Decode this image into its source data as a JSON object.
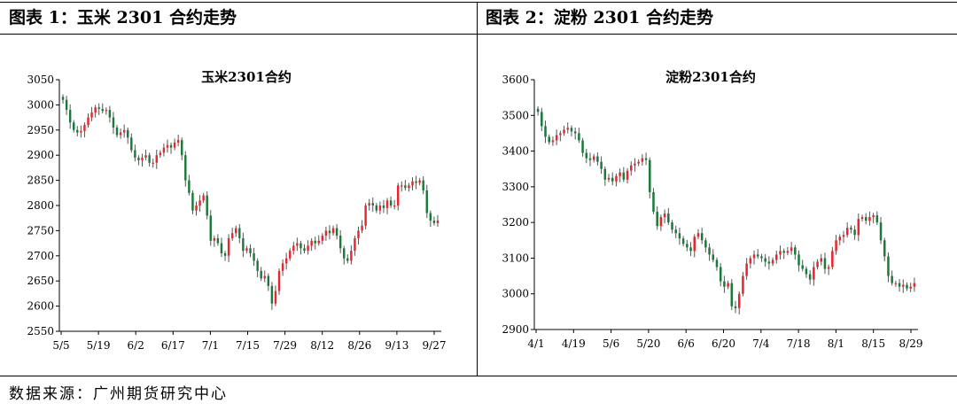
{
  "header": {
    "left_title": "图表 1：玉米 2301 合约走势",
    "right_title": "图表 2：淀粉 2301 合约走势"
  },
  "footer": {
    "source": "数据来源：广州期货研究中心"
  },
  "colors": {
    "up": "#e8262b",
    "down": "#1a7a3a",
    "axis": "#000000",
    "wick": "#555555"
  },
  "chart_data": [
    {
      "type": "candlestick",
      "title": "玉米2301合约",
      "xlabel": "",
      "ylabel": "",
      "ylim": [
        2550,
        3050
      ],
      "yticks": [
        2550,
        2600,
        2650,
        2700,
        2750,
        2800,
        2850,
        2900,
        2950,
        3000,
        3050
      ],
      "xtick_labels": [
        "5/5",
        "5/19",
        "6/2",
        "6/17",
        "7/1",
        "7/15",
        "7/29",
        "8/12",
        "8/26",
        "9/13",
        "9/27"
      ],
      "grid": false,
      "legend": "none",
      "close": [
        3010,
        2990,
        2965,
        2950,
        2945,
        2948,
        2960,
        2975,
        2985,
        2995,
        2992,
        2988,
        2990,
        2975,
        2955,
        2940,
        2945,
        2950,
        2935,
        2910,
        2895,
        2890,
        2895,
        2900,
        2885,
        2885,
        2900,
        2905,
        2915,
        2920,
        2915,
        2925,
        2930,
        2900,
        2850,
        2825,
        2790,
        2800,
        2810,
        2820,
        2780,
        2730,
        2735,
        2725,
        2705,
        2700,
        2735,
        2745,
        2755,
        2735,
        2710,
        2715,
        2705,
        2690,
        2670,
        2655,
        2660,
        2640,
        2605,
        2630,
        2670,
        2685,
        2695,
        2710,
        2720,
        2725,
        2715,
        2710,
        2720,
        2730,
        2725,
        2730,
        2740,
        2750,
        2745,
        2755,
        2740,
        2715,
        2695,
        2690,
        2710,
        2735,
        2750,
        2760,
        2800,
        2805,
        2800,
        2790,
        2800,
        2795,
        2810,
        2800,
        2800,
        2840,
        2840,
        2835,
        2840,
        2848,
        2845,
        2850,
        2830,
        2785,
        2770,
        2765,
        2770
      ]
    },
    {
      "type": "candlestick",
      "title": "淀粉2301合约",
      "xlabel": "",
      "ylabel": "",
      "ylim": [
        2900,
        3600
      ],
      "yticks": [
        2900,
        3000,
        3100,
        3200,
        3300,
        3400,
        3500,
        3600
      ],
      "xtick_labels": [
        "4/1",
        "4/19",
        "5/6",
        "5/20",
        "6/6",
        "6/20",
        "7/4",
        "7/18",
        "8/1",
        "8/15",
        "8/29"
      ],
      "grid": false,
      "legend": "none",
      "close": [
        3510,
        3470,
        3440,
        3425,
        3430,
        3445,
        3450,
        3460,
        3465,
        3455,
        3450,
        3430,
        3395,
        3380,
        3375,
        3385,
        3370,
        3350,
        3320,
        3325,
        3315,
        3330,
        3340,
        3320,
        3345,
        3360,
        3365,
        3370,
        3380,
        3375,
        3285,
        3230,
        3190,
        3215,
        3225,
        3200,
        3180,
        3170,
        3155,
        3140,
        3130,
        3120,
        3160,
        3170,
        3150,
        3130,
        3110,
        3095,
        3075,
        3035,
        3020,
        3030,
        2965,
        2960,
        3000,
        3050,
        3085,
        3100,
        3110,
        3105,
        3100,
        3090,
        3085,
        3095,
        3110,
        3120,
        3115,
        3120,
        3130,
        3110,
        3080,
        3070,
        3055,
        3040,
        3075,
        3090,
        3100,
        3070,
        3075,
        3120,
        3150,
        3160,
        3165,
        3185,
        3180,
        3165,
        3210,
        3215,
        3205,
        3215,
        3220,
        3200,
        3150,
        3105,
        3050,
        3030,
        3030,
        3020,
        3025,
        3015,
        3020,
        3030
      ]
    }
  ]
}
